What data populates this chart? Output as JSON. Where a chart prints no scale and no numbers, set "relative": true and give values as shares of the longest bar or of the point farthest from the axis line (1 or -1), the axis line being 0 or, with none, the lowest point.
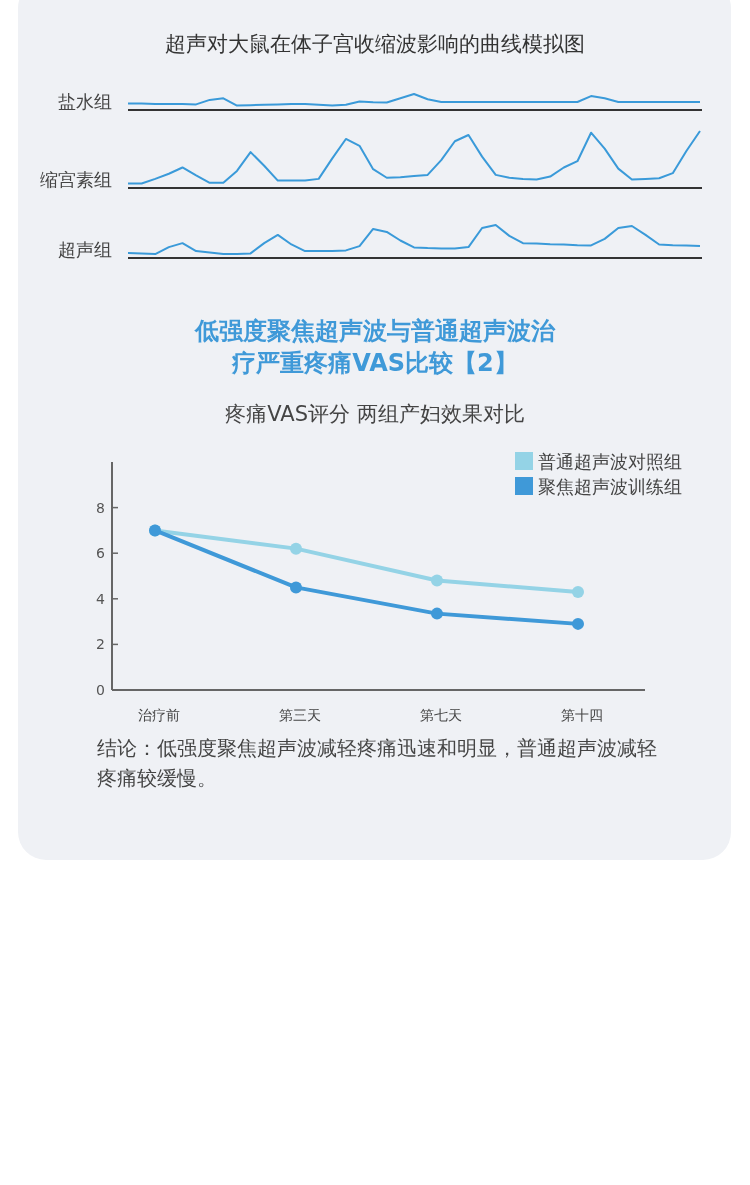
{
  "chart_data": [
    {
      "type": "line",
      "title": "超声对大鼠在体子宫收缩波影响的曲线模拟图",
      "relative": true,
      "grid": false,
      "legend": false,
      "marker": "none",
      "categories": [
        null,
        null,
        null,
        null,
        null,
        null,
        null,
        null,
        null,
        null,
        null,
        null,
        null,
        null,
        null,
        null,
        null,
        null,
        null,
        null,
        null,
        null,
        null,
        null,
        null,
        null,
        null,
        null,
        null,
        null,
        null,
        null,
        null,
        null,
        null,
        null,
        null,
        null,
        null,
        null,
        null,
        null,
        null
      ],
      "series": [
        {
          "name": "盐水组",
          "color": "#3a9ad9",
          "values": [
            0.4,
            0.4,
            0.38,
            0.37,
            0.37,
            0.35,
            0.63,
            0.73,
            0.28,
            0.3,
            0.33,
            0.35,
            0.37,
            0.38,
            0.33,
            0.28,
            0.33,
            0.53,
            0.48,
            0.47,
            0.73,
            1,
            0.67,
            0.5,
            0.5,
            0.5,
            0.5,
            0.5,
            0.5,
            0.5,
            0.5,
            0.5,
            0.5,
            0.5,
            0.87,
            0.73,
            0.5,
            0.5,
            0.5,
            0.5,
            0.5,
            0.5,
            0.5
          ]
        }
      ]
    },
    {
      "type": "line",
      "relative": true,
      "grid": false,
      "legend": false,
      "marker": "none",
      "categories": [
        null,
        null,
        null,
        null,
        null,
        null,
        null,
        null,
        null,
        null,
        null,
        null,
        null,
        null,
        null,
        null,
        null,
        null,
        null,
        null,
        null,
        null,
        null,
        null,
        null,
        null,
        null,
        null,
        null,
        null,
        null,
        null,
        null,
        null,
        null,
        null,
        null,
        null,
        null,
        null,
        null,
        null,
        null
      ],
      "series": [
        {
          "name": "缩宫素组",
          "color": "#3a9ad9",
          "values": [
            0.08,
            0.08,
            0.16,
            0.25,
            0.36,
            0.22,
            0.09,
            0.09,
            0.3,
            0.63,
            0.39,
            0.13,
            0.13,
            0.13,
            0.16,
            0.52,
            0.86,
            0.74,
            0.33,
            0.18,
            0.19,
            0.21,
            0.23,
            0.49,
            0.82,
            0.93,
            0.55,
            0.23,
            0.18,
            0.16,
            0.15,
            0.2,
            0.36,
            0.47,
            0.97,
            0.69,
            0.34,
            0.15,
            0.16,
            0.17,
            0.26,
            0.65,
            1
          ]
        }
      ]
    },
    {
      "type": "line",
      "relative": true,
      "grid": false,
      "legend": false,
      "marker": "none",
      "categories": [
        null,
        null,
        null,
        null,
        null,
        null,
        null,
        null,
        null,
        null,
        null,
        null,
        null,
        null,
        null,
        null,
        null,
        null,
        null,
        null,
        null,
        null,
        null,
        null,
        null,
        null,
        null,
        null,
        null,
        null,
        null,
        null,
        null,
        null,
        null,
        null,
        null,
        null,
        null,
        null,
        null,
        null,
        null
      ],
      "series": [
        {
          "name": "超声组",
          "color": "#3a9ad9",
          "values": [
            0.15,
            0.14,
            0.12,
            0.33,
            0.45,
            0.21,
            0.17,
            0.12,
            0.12,
            0.14,
            0.45,
            0.7,
            0.41,
            0.21,
            0.21,
            0.21,
            0.23,
            0.36,
            0.88,
            0.79,
            0.53,
            0.32,
            0.3,
            0.29,
            0.29,
            0.33,
            0.91,
            1,
            0.67,
            0.45,
            0.44,
            0.42,
            0.41,
            0.39,
            0.38,
            0.58,
            0.91,
            0.97,
            0.7,
            0.41,
            0.39,
            0.38,
            0.36
          ]
        }
      ]
    },
    {
      "type": "line",
      "title": "低强度聚焦超声波与普通超声波治疗严重疼痛VAS比较【2】",
      "subtitle": "疼痛VAS评分 两组产妇效果对比",
      "annotations": [
        "结论：低强度聚焦超声波减轻疼痛迅速和明显，普通超声波减轻疼痛较缓慢。"
      ],
      "categories": [
        "治疗前",
        "第三天",
        "第七天",
        "第十四"
      ],
      "ylim": [
        0,
        10
      ],
      "yticks": [
        0,
        2,
        4,
        6,
        8
      ],
      "grid": false,
      "legend": "top right",
      "marker": "circle",
      "line_style": "solid",
      "series": [
        {
          "name": "普通超声波对照组",
          "color": "#94d3e6",
          "values": [
            7.0,
            6.2,
            4.8,
            4.3
          ]
        },
        {
          "name": "聚焦超声波训练组",
          "color": "#3f99d8",
          "values": [
            7.0,
            4.5,
            3.35,
            2.9
          ]
        }
      ]
    }
  ]
}
